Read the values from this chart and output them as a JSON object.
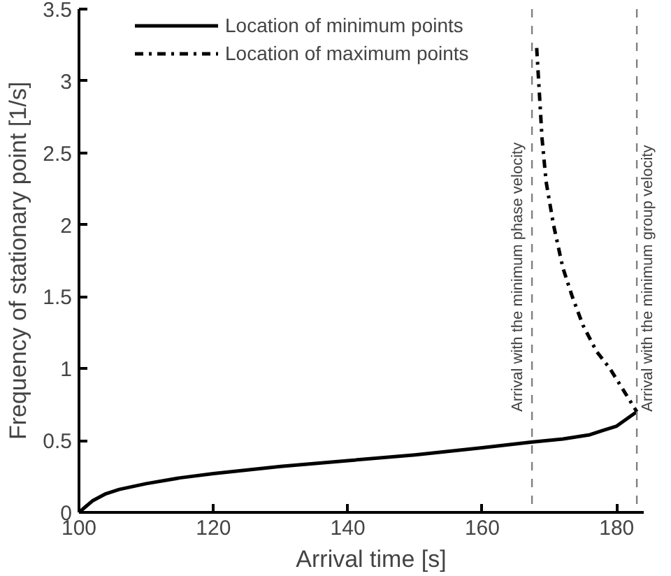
{
  "chart_data": {
    "type": "line",
    "xlabel": "Arrival time [s]",
    "ylabel": "Frequency of stationary point [1/s]",
    "xlim": [
      100,
      184
    ],
    "xticks": [
      100,
      120,
      140,
      160,
      180
    ],
    "ylim": [
      0,
      3.5
    ],
    "yticks": [
      0,
      0.5,
      1,
      1.5,
      2,
      2.5,
      3,
      3.5
    ],
    "grid": false,
    "legend": "top left",
    "marker": "none",
    "series": [
      {
        "name": "Location of minimum points",
        "color": "#000000",
        "line_style": "solid",
        "x": [
          100,
          101,
          102,
          104,
          106,
          110,
          115,
          120,
          130,
          140,
          150,
          160,
          167.5,
          172,
          176,
          178,
          180,
          183
        ],
        "values": [
          0,
          0.04,
          0.08,
          0.13,
          0.16,
          0.2,
          0.24,
          0.27,
          0.32,
          0.36,
          0.4,
          0.45,
          0.49,
          0.51,
          0.54,
          0.57,
          0.6,
          0.7
        ]
      },
      {
        "name": "Location of maximum points",
        "color": "#000000",
        "line_style": "dashdot",
        "x": [
          168.1,
          168.9,
          169.5,
          170.6,
          172,
          173.4,
          175,
          177,
          179,
          181,
          183
        ],
        "values": [
          3.23,
          2.6,
          2.3,
          2.0,
          1.7,
          1.5,
          1.3,
          1.12,
          1.0,
          0.85,
          0.7
        ]
      }
    ],
    "ref_lines": [
      {
        "axis": "x",
        "value": 167.4,
        "label": "Arrival with the minimum phase velocity",
        "color": "#808080",
        "line_style": "dashed"
      },
      {
        "axis": "x",
        "value": 183,
        "label": "Arrival with the minimum group velocity",
        "color": "#808080",
        "line_style": "dashed"
      }
    ]
  }
}
